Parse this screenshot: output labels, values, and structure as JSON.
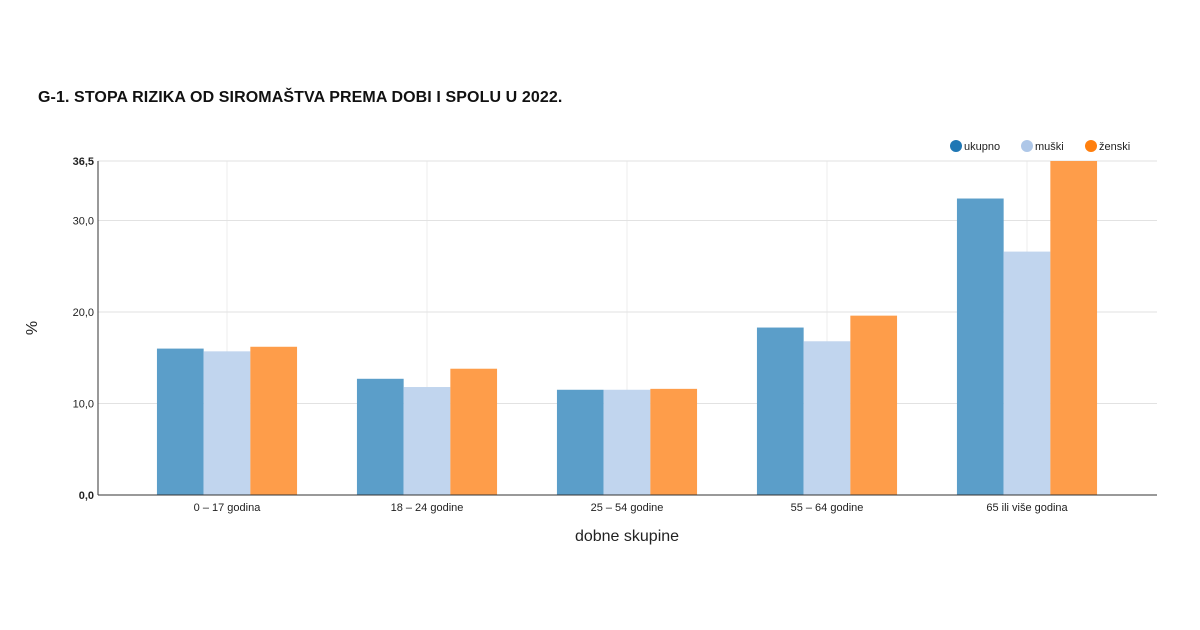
{
  "title": "G-1. STOPA RIZIKA OD SIROMAŠTVA PREMA DOBI I SPOLU U 2022.",
  "chart_data": {
    "type": "bar",
    "xlabel": "dobne skupine",
    "ylabel": "%",
    "ylim": [
      0,
      36.5
    ],
    "yticks": [
      "0,0",
      "10,0",
      "20,0",
      "30,0",
      "36,5"
    ],
    "grid": true,
    "legend_position": "top-right",
    "categories": [
      "0 – 17 godina",
      "18 – 24 godine",
      "25 – 54 godine",
      "55 – 64 godine",
      "65 ili više godina"
    ],
    "series": [
      {
        "name": "ukupno",
        "color": "#5b9ec9",
        "legend_color": "#1f77b4",
        "values": [
          16.0,
          12.7,
          11.5,
          18.3,
          32.4
        ]
      },
      {
        "name": "muški",
        "color": "#c1d5ee",
        "legend_color": "#aec7e8",
        "values": [
          15.7,
          11.8,
          11.5,
          16.8,
          26.6
        ]
      },
      {
        "name": "ženski",
        "color": "#fe9d4a",
        "legend_color": "#ff7f0e",
        "values": [
          16.2,
          13.8,
          11.6,
          19.6,
          36.5
        ]
      }
    ]
  }
}
